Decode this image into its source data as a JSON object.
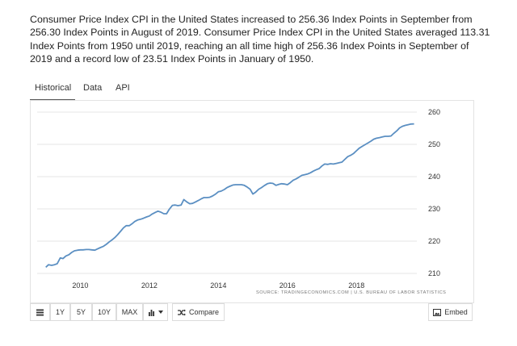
{
  "summary": {
    "text": "Consumer Price Index CPI in the United States increased to 256.36 Index Points in September from 256.30 Index Points in August of 2019. Consumer Price Index CPI in the United States averaged 113.31 Index Points from 1950 until 2019, reaching an all time high of 256.36 Index Points in September of 2019 and a record low of 23.51 Index Points in January of 1950."
  },
  "tabs": [
    {
      "label": "Historical",
      "active": true
    },
    {
      "label": "Data",
      "active": false
    },
    {
      "label": "API",
      "active": false
    }
  ],
  "source": "SOURCE: TRADINGECONOMICS.COM | U.S. BUREAU OF LABOR STATISTICS",
  "toolbar": {
    "menu_icon": "menu-icon",
    "btn_1y": "1Y",
    "btn_5y": "5Y",
    "btn_10y": "10Y",
    "btn_max": "MAX",
    "chart_type_icon": "bar-chart-icon",
    "compare_icon": "shuffle-icon",
    "compare_label": "Compare",
    "embed_icon": "image-icon",
    "embed_label": "Embed"
  },
  "colors": {
    "line": "#5b8fc2",
    "grid": "#e6e6e6"
  },
  "chart_data": {
    "type": "line",
    "title": "",
    "xlabel": "",
    "ylabel": "",
    "ylim": [
      209,
      262
    ],
    "xlim": [
      2008.75,
      2019.75
    ],
    "y_ticks": [
      210,
      220,
      230,
      240,
      250,
      260
    ],
    "x_ticks": [
      2010,
      2012,
      2014,
      2016,
      2018
    ],
    "grid": "horizontal",
    "y_axis_position": "right",
    "series": [
      {
        "values": [
          [
            2009.0,
            211.9
          ],
          [
            2009.08,
            212.7
          ],
          [
            2009.17,
            212.5
          ],
          [
            2009.25,
            212.7
          ],
          [
            2009.33,
            213.0
          ],
          [
            2009.42,
            214.8
          ],
          [
            2009.5,
            214.6
          ],
          [
            2009.58,
            215.4
          ],
          [
            2009.67,
            215.8
          ],
          [
            2009.75,
            216.5
          ],
          [
            2009.83,
            217.0
          ],
          [
            2009.92,
            217.2
          ],
          [
            2010.0,
            217.3
          ],
          [
            2010.08,
            217.3
          ],
          [
            2010.17,
            217.4
          ],
          [
            2010.25,
            217.4
          ],
          [
            2010.33,
            217.3
          ],
          [
            2010.42,
            217.2
          ],
          [
            2010.5,
            217.6
          ],
          [
            2010.58,
            218.0
          ],
          [
            2010.67,
            218.4
          ],
          [
            2010.75,
            219.0
          ],
          [
            2010.83,
            219.7
          ],
          [
            2010.92,
            220.4
          ],
          [
            2011.0,
            221.1
          ],
          [
            2011.08,
            222.0
          ],
          [
            2011.17,
            223.1
          ],
          [
            2011.25,
            224.1
          ],
          [
            2011.33,
            224.8
          ],
          [
            2011.42,
            224.8
          ],
          [
            2011.5,
            225.4
          ],
          [
            2011.58,
            226.1
          ],
          [
            2011.67,
            226.6
          ],
          [
            2011.75,
            226.8
          ],
          [
            2011.83,
            227.1
          ],
          [
            2011.92,
            227.5
          ],
          [
            2012.0,
            227.8
          ],
          [
            2012.08,
            228.4
          ],
          [
            2012.17,
            228.9
          ],
          [
            2012.25,
            229.3
          ],
          [
            2012.33,
            229.0
          ],
          [
            2012.42,
            228.5
          ],
          [
            2012.5,
            228.5
          ],
          [
            2012.58,
            229.9
          ],
          [
            2012.67,
            231.1
          ],
          [
            2012.75,
            231.2
          ],
          [
            2012.83,
            231.0
          ],
          [
            2012.92,
            231.2
          ],
          [
            2013.0,
            232.9
          ],
          [
            2013.08,
            232.2
          ],
          [
            2013.17,
            231.6
          ],
          [
            2013.25,
            231.7
          ],
          [
            2013.33,
            232.1
          ],
          [
            2013.42,
            232.6
          ],
          [
            2013.5,
            233.1
          ],
          [
            2013.58,
            233.5
          ],
          [
            2013.67,
            233.5
          ],
          [
            2013.75,
            233.6
          ],
          [
            2013.83,
            234.0
          ],
          [
            2013.92,
            234.6
          ],
          [
            2014.0,
            235.3
          ],
          [
            2014.08,
            235.5
          ],
          [
            2014.17,
            236.0
          ],
          [
            2014.25,
            236.6
          ],
          [
            2014.33,
            237.0
          ],
          [
            2014.42,
            237.4
          ],
          [
            2014.5,
            237.5
          ],
          [
            2014.58,
            237.5
          ],
          [
            2014.67,
            237.5
          ],
          [
            2014.75,
            237.3
          ],
          [
            2014.83,
            236.8
          ],
          [
            2014.92,
            236.1
          ],
          [
            2015.0,
            234.6
          ],
          [
            2015.08,
            235.2
          ],
          [
            2015.17,
            236.1
          ],
          [
            2015.25,
            236.6
          ],
          [
            2015.33,
            237.2
          ],
          [
            2015.42,
            237.8
          ],
          [
            2015.5,
            238.0
          ],
          [
            2015.58,
            237.9
          ],
          [
            2015.67,
            237.3
          ],
          [
            2015.75,
            237.6
          ],
          [
            2015.83,
            237.8
          ],
          [
            2015.92,
            237.7
          ],
          [
            2016.0,
            237.5
          ],
          [
            2016.08,
            238.1
          ],
          [
            2016.17,
            238.9
          ],
          [
            2016.25,
            239.3
          ],
          [
            2016.33,
            239.8
          ],
          [
            2016.42,
            240.4
          ],
          [
            2016.5,
            240.6
          ],
          [
            2016.58,
            240.8
          ],
          [
            2016.67,
            241.2
          ],
          [
            2016.75,
            241.7
          ],
          [
            2016.83,
            242.1
          ],
          [
            2016.92,
            242.5
          ],
          [
            2017.0,
            243.3
          ],
          [
            2017.08,
            243.9
          ],
          [
            2017.17,
            243.8
          ],
          [
            2017.25,
            244.0
          ],
          [
            2017.33,
            243.9
          ],
          [
            2017.42,
            244.1
          ],
          [
            2017.5,
            244.3
          ],
          [
            2017.58,
            244.5
          ],
          [
            2017.67,
            245.4
          ],
          [
            2017.75,
            246.2
          ],
          [
            2017.83,
            246.6
          ],
          [
            2017.92,
            247.2
          ],
          [
            2018.0,
            248.0
          ],
          [
            2018.08,
            248.8
          ],
          [
            2018.17,
            249.4
          ],
          [
            2018.25,
            249.9
          ],
          [
            2018.33,
            250.4
          ],
          [
            2018.42,
            251.0
          ],
          [
            2018.5,
            251.6
          ],
          [
            2018.58,
            251.9
          ],
          [
            2018.67,
            252.1
          ],
          [
            2018.75,
            252.3
          ],
          [
            2018.83,
            252.5
          ],
          [
            2018.92,
            252.5
          ],
          [
            2019.0,
            252.6
          ],
          [
            2019.08,
            253.4
          ],
          [
            2019.17,
            254.2
          ],
          [
            2019.25,
            255.1
          ],
          [
            2019.33,
            255.6
          ],
          [
            2019.42,
            255.9
          ],
          [
            2019.5,
            256.1
          ],
          [
            2019.58,
            256.3
          ],
          [
            2019.67,
            256.36
          ]
        ]
      }
    ]
  }
}
